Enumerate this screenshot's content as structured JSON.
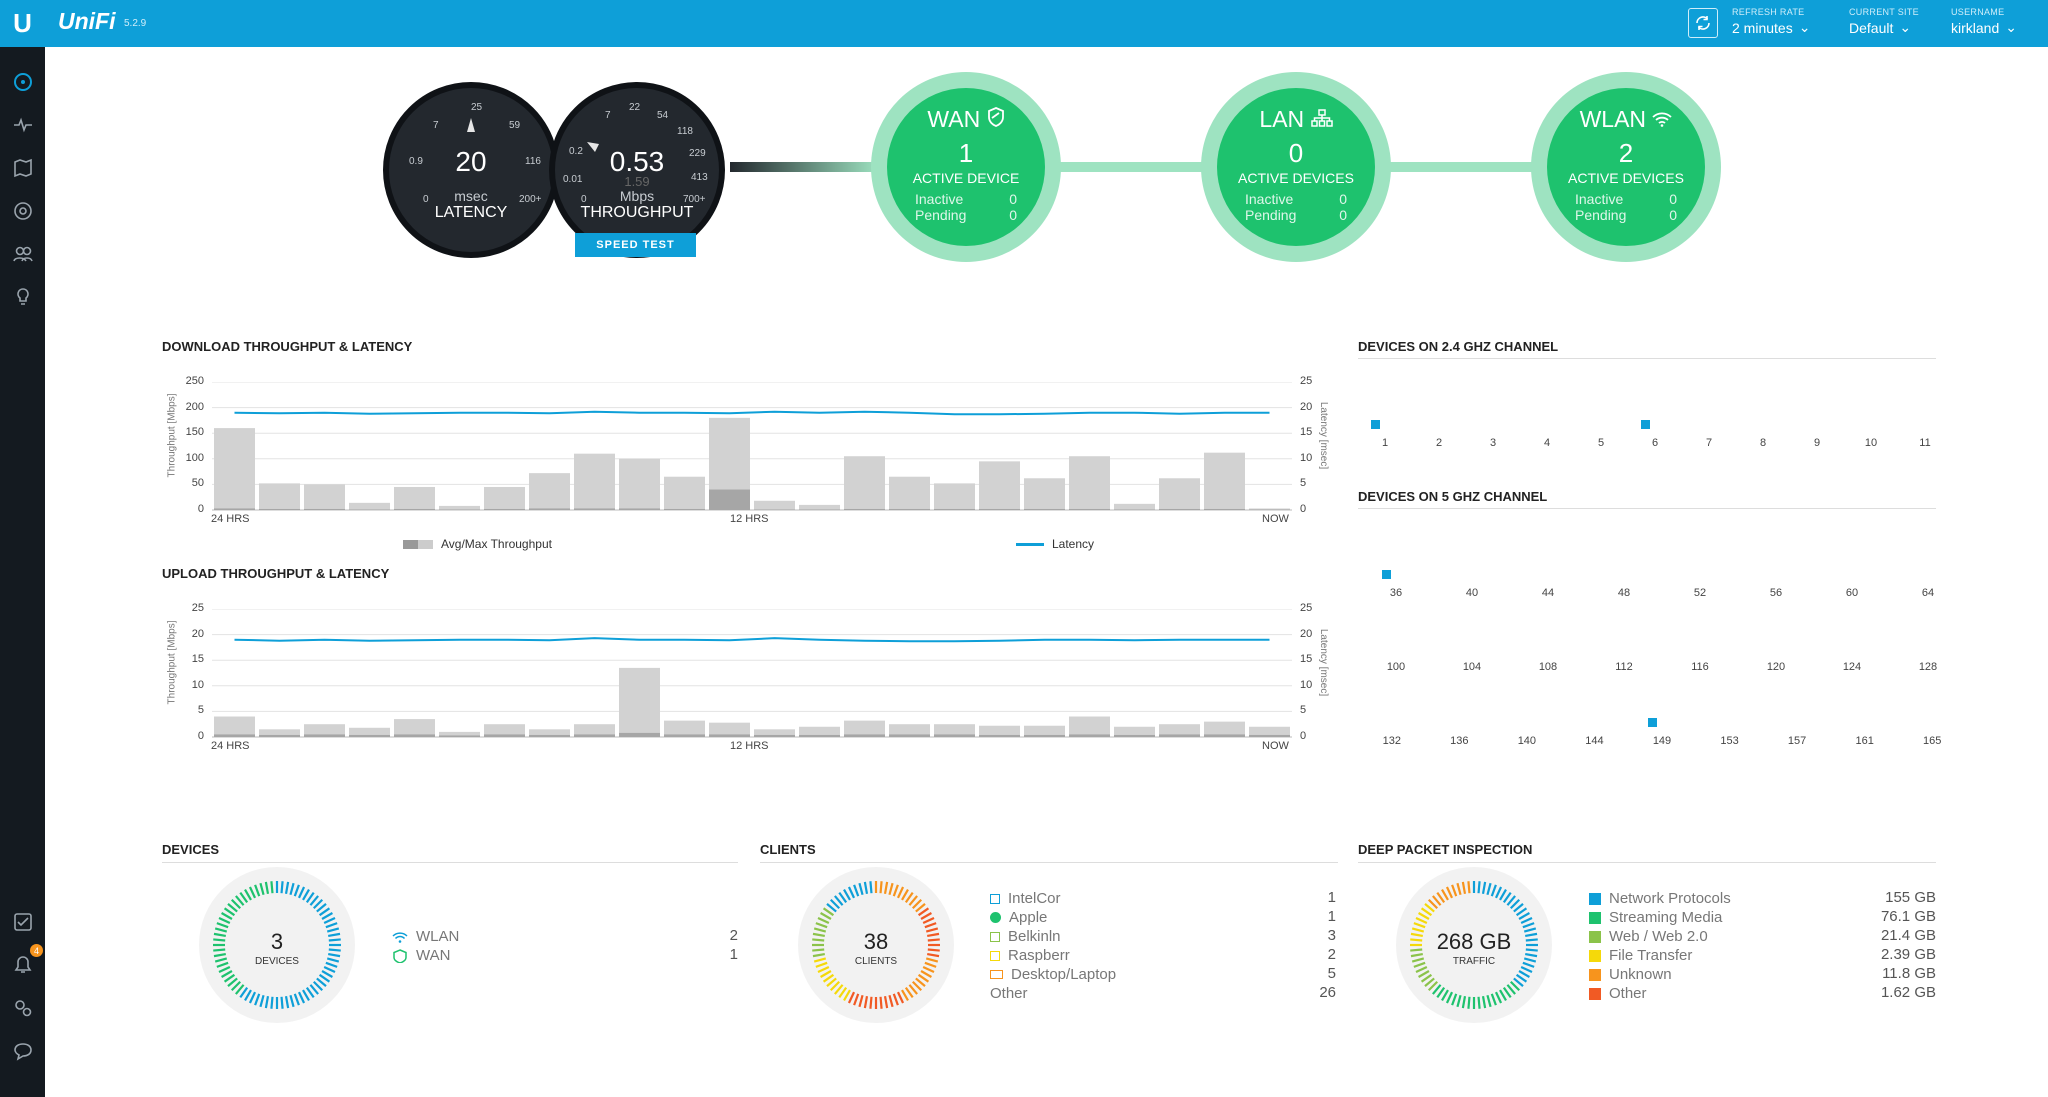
{
  "app": {
    "brand": "UniFi",
    "version": "5.2.9"
  },
  "header": {
    "refresh": {
      "label": "REFRESH RATE",
      "value": "2 minutes"
    },
    "site": {
      "label": "CURRENT SITE",
      "value": "Default"
    },
    "user": {
      "label": "USERNAME",
      "value": "kirkland"
    }
  },
  "sidebar": {
    "alerts_badge": "4"
  },
  "gauges": {
    "latency": {
      "value": "20",
      "unit": "msec",
      "title": "LATENCY",
      "ticks": [
        "0",
        "0.9",
        "7",
        "25",
        "59",
        "116",
        "200+"
      ]
    },
    "throughput": {
      "value": "0.53",
      "sub": "1.59",
      "unit": "Mbps",
      "title": "THROUGHPUT",
      "ticks": [
        "0",
        "0.01",
        "0.2",
        "7",
        "22",
        "54",
        "118",
        "229",
        "413",
        "700+"
      ]
    },
    "speed_test_label": "SPEED TEST"
  },
  "status": {
    "wan": {
      "name": "WAN",
      "count": "1",
      "desc": "ACTIVE DEVICE",
      "inactive_label": "Inactive",
      "inactive": "0",
      "pending_label": "Pending",
      "pending": "0"
    },
    "lan": {
      "name": "LAN",
      "count": "0",
      "desc": "ACTIVE DEVICES",
      "inactive_label": "Inactive",
      "inactive": "0",
      "pending_label": "Pending",
      "pending": "0"
    },
    "wlan": {
      "name": "WLAN",
      "count": "2",
      "desc": "ACTIVE DEVICES",
      "inactive_label": "Inactive",
      "inactive": "0",
      "pending_label": "Pending",
      "pending": "0"
    }
  },
  "download": {
    "title": "DOWNLOAD THROUGHPUT & LATENCY",
    "ylabel": "Throughput [Mbps]",
    "y2label": "Latency [msec]",
    "yticks": [
      "250",
      "200",
      "150",
      "100",
      "50",
      "0"
    ],
    "y2ticks": [
      "25",
      "20",
      "15",
      "10",
      "5",
      "0"
    ],
    "xlabels": [
      "24 HRS",
      "12 HRS",
      "NOW"
    ],
    "legend_bars": "Avg/Max Throughput",
    "legend_line": "Latency"
  },
  "upload": {
    "title": "UPLOAD THROUGHPUT & LATENCY",
    "ylabel": "Throughput [Mbps]",
    "y2label": "Latency [msec]",
    "yticks": [
      "25",
      "20",
      "15",
      "10",
      "5",
      "0"
    ],
    "y2ticks": [
      "25",
      "20",
      "15",
      "10",
      "5",
      "0"
    ],
    "xlabels": [
      "24 HRS",
      "12 HRS",
      "NOW"
    ]
  },
  "chart_data": [
    {
      "type": "bar",
      "title": "DOWNLOAD THROUGHPUT & LATENCY",
      "xlabel": "",
      "ylabel": "Throughput [Mbps]",
      "ylim": [
        0,
        250
      ],
      "y2lim": [
        0,
        25
      ],
      "series": [
        {
          "name": "Max Throughput",
          "values": [
            160,
            52,
            50,
            14,
            45,
            8,
            45,
            72,
            110,
            100,
            65,
            180,
            18,
            10,
            105,
            65,
            52,
            95,
            62,
            105,
            12,
            62,
            112,
            3
          ]
        },
        {
          "name": "Avg Throughput",
          "values": [
            3,
            2,
            2,
            1,
            2,
            1,
            2,
            3,
            3,
            3,
            2,
            40,
            1,
            1,
            2,
            2,
            2,
            2,
            2,
            2,
            1,
            2,
            2,
            1
          ]
        },
        {
          "name": "Latency",
          "values": [
            19,
            18.9,
            19,
            18.8,
            18.9,
            19,
            19,
            18.9,
            19.2,
            19,
            19,
            18.9,
            19.2,
            19,
            19.2,
            19,
            18.7,
            18.7,
            18.8,
            19,
            19,
            18.8,
            19,
            19
          ]
        }
      ]
    },
    {
      "type": "bar",
      "title": "UPLOAD THROUGHPUT & LATENCY",
      "xlabel": "",
      "ylabel": "Throughput [Mbps]",
      "ylim": [
        0,
        25
      ],
      "y2lim": [
        0,
        25
      ],
      "series": [
        {
          "name": "Max Throughput",
          "values": [
            4,
            1.5,
            2.5,
            1.8,
            3.5,
            1,
            2.5,
            1.5,
            2.5,
            13.5,
            3.2,
            2.8,
            1.5,
            2,
            3.2,
            2.5,
            2.5,
            2.2,
            2.2,
            4,
            2,
            2.5,
            3,
            2
          ]
        },
        {
          "name": "Avg Throughput",
          "values": [
            0.5,
            0.4,
            0.5,
            0.4,
            0.5,
            0.3,
            0.5,
            0.4,
            0.5,
            0.8,
            0.5,
            0.5,
            0.4,
            0.4,
            0.5,
            0.5,
            0.5,
            0.4,
            0.4,
            0.5,
            0.4,
            0.5,
            0.5,
            0.4
          ]
        },
        {
          "name": "Latency",
          "values": [
            19,
            18.8,
            19,
            18.8,
            18.9,
            19,
            19,
            18.9,
            19.3,
            19,
            19,
            18.9,
            19.3,
            19,
            18.8,
            18.7,
            18.7,
            18.8,
            19,
            19,
            18.9,
            19,
            19,
            19
          ]
        }
      ]
    }
  ],
  "channels": {
    "ghz24": {
      "title": "DEVICES ON 2.4 GHZ CHANNEL",
      "channels": [
        "1",
        "2",
        "3",
        "4",
        "5",
        "6",
        "7",
        "8",
        "9",
        "10",
        "11"
      ],
      "occupied": [
        0,
        5
      ]
    },
    "ghz5": {
      "title": "DEVICES ON 5 GHZ CHANNEL",
      "rows": [
        [
          "36",
          "40",
          "44",
          "48",
          "52",
          "56",
          "60",
          "64"
        ],
        [
          "100",
          "104",
          "108",
          "112",
          "116",
          "120",
          "124",
          "128"
        ],
        [
          "132",
          "136",
          "140",
          "144",
          "149",
          "153",
          "157",
          "161",
          "165"
        ]
      ],
      "occupied": [
        [
          0,
          0
        ],
        [
          2,
          4
        ]
      ]
    }
  },
  "devices": {
    "title": "DEVICES",
    "count": "3",
    "label": "DEVICES",
    "items": [
      {
        "name": "WLAN",
        "value": "2",
        "icon": "wifi-icon"
      },
      {
        "name": "WAN",
        "value": "1",
        "icon": "shield-icon"
      }
    ]
  },
  "clients": {
    "title": "CLIENTS",
    "count": "38",
    "label": "CLIENTS",
    "items": [
      {
        "name": "IntelCor",
        "value": "1",
        "color": "#0e9fd8"
      },
      {
        "name": "Apple",
        "value": "1",
        "color": "#1ec26e"
      },
      {
        "name": "Belkinln",
        "value": "3",
        "color": "#8bc34a"
      },
      {
        "name": "Raspberr",
        "value": "2",
        "color": "#f5d90a"
      },
      {
        "name": "Desktop/Laptop",
        "value": "5",
        "color": "#f7941d"
      },
      {
        "name": "Other",
        "value": "26",
        "color": ""
      }
    ]
  },
  "dpi": {
    "title": "DEEP PACKET INSPECTION",
    "count": "268 GB",
    "label": "TRAFFIC",
    "items": [
      {
        "name": "Network Protocols",
        "value": "155 GB",
        "color": "#0e9fd8"
      },
      {
        "name": "Streaming Media",
        "value": "76.1 GB",
        "color": "#1ec26e"
      },
      {
        "name": "Web / Web 2.0",
        "value": "21.4 GB",
        "color": "#8bc34a"
      },
      {
        "name": "File Transfer",
        "value": "2.39 GB",
        "color": "#f5d90a"
      },
      {
        "name": "Unknown",
        "value": "11.8 GB",
        "color": "#f7941d"
      },
      {
        "name": "Other",
        "value": "1.62 GB",
        "color": "#f15a24"
      }
    ]
  }
}
